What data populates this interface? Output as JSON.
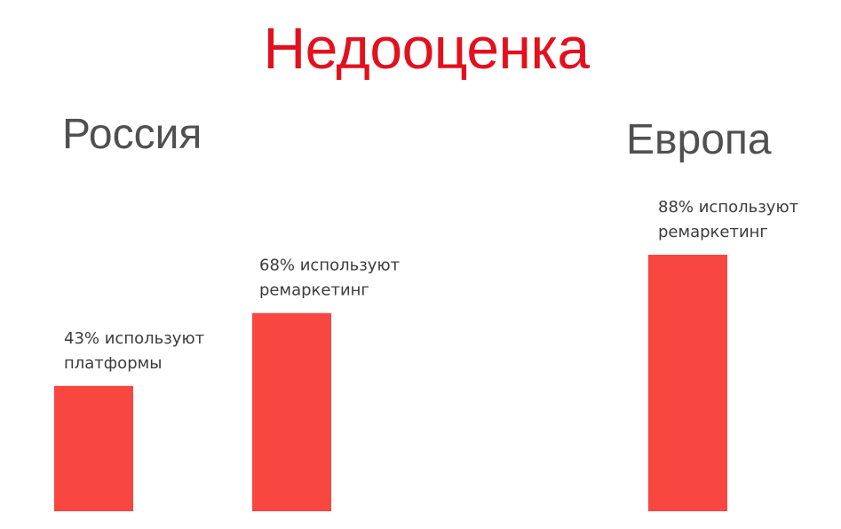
{
  "title": "Недооценка",
  "groups": {
    "russia": "Россия",
    "europe": "Европа"
  },
  "colors": {
    "title": "#e3101d",
    "bar": "#f84641",
    "group_label": "#505050",
    "bar_label": "#3c3c3c"
  },
  "chart_data": {
    "type": "bar",
    "title": "Недооценка",
    "xlabel": "",
    "ylabel": "",
    "ylim": [
      0,
      100
    ],
    "grid": false,
    "legend": "none",
    "categories": [
      "платформы",
      "ремаркетинг",
      "ремаркетинг"
    ],
    "groups": [
      "Россия",
      "Россия",
      "Европа"
    ],
    "values": [
      43,
      68,
      88
    ],
    "unit": "%",
    "data_labels": [
      [
        "43% используют",
        "платформы"
      ],
      [
        "68% используют",
        "ремаркетинг"
      ],
      [
        "88% используют",
        "ремаркетинг"
      ]
    ]
  }
}
